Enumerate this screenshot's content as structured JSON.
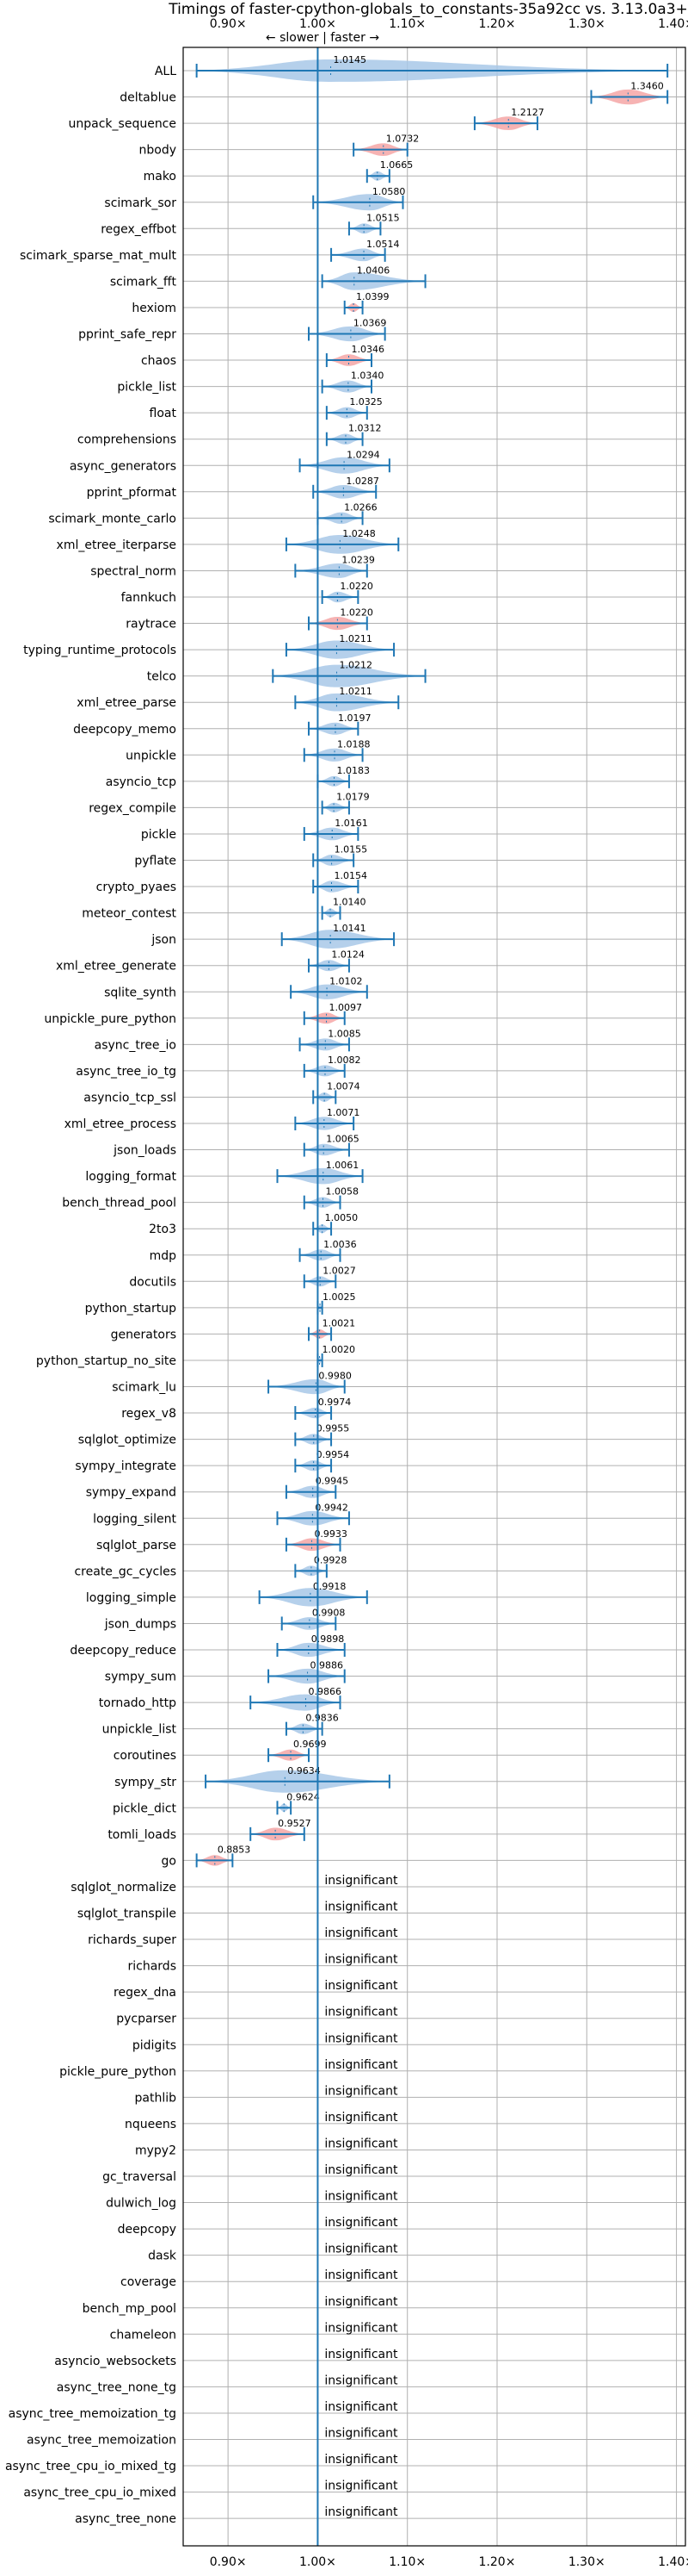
{
  "chart_data": {
    "type": "violin",
    "title": "Timings of faster-cpython-globals_to_constants-35a92cc vs. 3.13.0a3+",
    "direction_label": "← slower | faster →",
    "xlim": [
      0.85,
      1.41
    ],
    "xticks": [
      0.9,
      1.0,
      1.1,
      1.2,
      1.3,
      1.4
    ],
    "xtick_labels": [
      "0.90×",
      "1.00×",
      "1.10×",
      "1.20×",
      "1.30×",
      "1.40×"
    ],
    "reference_line": 1.0,
    "colors": {
      "normal": "#a8c8e8",
      "significant": "#f4a6a6",
      "marker": "#1f77b4"
    },
    "insignificant_label": "insignificant",
    "benchmarks": [
      {
        "name": "ALL",
        "mean": 1.0145,
        "min": 0.865,
        "max": 1.39,
        "flag": "normal",
        "label": "1.0145"
      },
      {
        "name": "deltablue",
        "mean": 1.346,
        "min": 1.305,
        "max": 1.39,
        "flag": "sig",
        "label": "1.3460"
      },
      {
        "name": "unpack_sequence",
        "mean": 1.2127,
        "min": 1.175,
        "max": 1.245,
        "flag": "sig",
        "label": "1.2127"
      },
      {
        "name": "nbody",
        "mean": 1.0732,
        "min": 1.04,
        "max": 1.1,
        "flag": "sig",
        "label": "1.0732"
      },
      {
        "name": "mako",
        "mean": 1.0665,
        "min": 1.055,
        "max": 1.08,
        "flag": "normal",
        "label": "1.0665"
      },
      {
        "name": "scimark_sor",
        "mean": 1.058,
        "min": 0.995,
        "max": 1.095,
        "flag": "normal",
        "label": "1.0580"
      },
      {
        "name": "regex_effbot",
        "mean": 1.0515,
        "min": 1.035,
        "max": 1.07,
        "flag": "normal",
        "label": "1.0515"
      },
      {
        "name": "scimark_sparse_mat_mult",
        "mean": 1.0514,
        "min": 1.015,
        "max": 1.075,
        "flag": "normal",
        "label": "1.0514"
      },
      {
        "name": "scimark_fft",
        "mean": 1.0406,
        "min": 1.005,
        "max": 1.12,
        "flag": "normal",
        "label": "1.0406"
      },
      {
        "name": "hexiom",
        "mean": 1.0399,
        "min": 1.03,
        "max": 1.05,
        "flag": "sig",
        "label": "1.0399"
      },
      {
        "name": "pprint_safe_repr",
        "mean": 1.0369,
        "min": 0.99,
        "max": 1.075,
        "flag": "normal",
        "label": "1.0369"
      },
      {
        "name": "chaos",
        "mean": 1.0346,
        "min": 1.01,
        "max": 1.06,
        "flag": "sig",
        "label": "1.0346"
      },
      {
        "name": "pickle_list",
        "mean": 1.034,
        "min": 1.005,
        "max": 1.06,
        "flag": "normal",
        "label": "1.0340"
      },
      {
        "name": "float",
        "mean": 1.0325,
        "min": 1.01,
        "max": 1.055,
        "flag": "normal",
        "label": "1.0325"
      },
      {
        "name": "comprehensions",
        "mean": 1.0312,
        "min": 1.01,
        "max": 1.05,
        "flag": "normal",
        "label": "1.0312"
      },
      {
        "name": "async_generators",
        "mean": 1.0294,
        "min": 0.98,
        "max": 1.08,
        "flag": "normal",
        "label": "1.0294"
      },
      {
        "name": "pprint_pformat",
        "mean": 1.0287,
        "min": 0.995,
        "max": 1.065,
        "flag": "normal",
        "label": "1.0287"
      },
      {
        "name": "scimark_monte_carlo",
        "mean": 1.0266,
        "min": 1.0,
        "max": 1.05,
        "flag": "normal",
        "label": "1.0266"
      },
      {
        "name": "xml_etree_iterparse",
        "mean": 1.0248,
        "min": 0.965,
        "max": 1.09,
        "flag": "normal",
        "label": "1.0248"
      },
      {
        "name": "spectral_norm",
        "mean": 1.0239,
        "min": 0.975,
        "max": 1.055,
        "flag": "normal",
        "label": "1.0239"
      },
      {
        "name": "fannkuch",
        "mean": 1.022,
        "min": 1.005,
        "max": 1.045,
        "flag": "normal",
        "label": "1.0220"
      },
      {
        "name": "raytrace",
        "mean": 1.022,
        "min": 0.99,
        "max": 1.055,
        "flag": "sig",
        "label": "1.0220"
      },
      {
        "name": "typing_runtime_protocols",
        "mean": 1.0211,
        "min": 0.965,
        "max": 1.085,
        "flag": "normal",
        "label": "1.0211"
      },
      {
        "name": "telco",
        "mean": 1.0212,
        "min": 0.95,
        "max": 1.12,
        "flag": "normal",
        "label": "1.0212"
      },
      {
        "name": "xml_etree_parse",
        "mean": 1.0211,
        "min": 0.975,
        "max": 1.09,
        "flag": "normal",
        "label": "1.0211"
      },
      {
        "name": "deepcopy_memo",
        "mean": 1.0197,
        "min": 0.99,
        "max": 1.045,
        "flag": "normal",
        "label": "1.0197"
      },
      {
        "name": "unpickle",
        "mean": 1.0188,
        "min": 0.985,
        "max": 1.05,
        "flag": "normal",
        "label": "1.0188"
      },
      {
        "name": "asyncio_tcp",
        "mean": 1.0183,
        "min": 1.0,
        "max": 1.035,
        "flag": "normal",
        "label": "1.0183"
      },
      {
        "name": "regex_compile",
        "mean": 1.0179,
        "min": 1.005,
        "max": 1.035,
        "flag": "normal",
        "label": "1.0179"
      },
      {
        "name": "pickle",
        "mean": 1.0161,
        "min": 0.985,
        "max": 1.045,
        "flag": "normal",
        "label": "1.0161"
      },
      {
        "name": "pyflate",
        "mean": 1.0155,
        "min": 0.995,
        "max": 1.04,
        "flag": "normal",
        "label": "1.0155"
      },
      {
        "name": "crypto_pyaes",
        "mean": 1.0154,
        "min": 0.995,
        "max": 1.045,
        "flag": "normal",
        "label": "1.0154"
      },
      {
        "name": "meteor_contest",
        "mean": 1.014,
        "min": 1.005,
        "max": 1.025,
        "flag": "normal",
        "label": "1.0140"
      },
      {
        "name": "json",
        "mean": 1.0141,
        "min": 0.96,
        "max": 1.085,
        "flag": "normal",
        "label": "1.0141"
      },
      {
        "name": "xml_etree_generate",
        "mean": 1.0124,
        "min": 0.99,
        "max": 1.035,
        "flag": "normal",
        "label": "1.0124"
      },
      {
        "name": "sqlite_synth",
        "mean": 1.0102,
        "min": 0.97,
        "max": 1.055,
        "flag": "normal",
        "label": "1.0102"
      },
      {
        "name": "unpickle_pure_python",
        "mean": 1.0097,
        "min": 0.985,
        "max": 1.03,
        "flag": "sig",
        "label": "1.0097"
      },
      {
        "name": "async_tree_io",
        "mean": 1.0085,
        "min": 0.98,
        "max": 1.035,
        "flag": "normal",
        "label": "1.0085"
      },
      {
        "name": "async_tree_io_tg",
        "mean": 1.0082,
        "min": 0.985,
        "max": 1.03,
        "flag": "normal",
        "label": "1.0082"
      },
      {
        "name": "asyncio_tcp_ssl",
        "mean": 1.0074,
        "min": 0.995,
        "max": 1.02,
        "flag": "normal",
        "label": "1.0074"
      },
      {
        "name": "xml_etree_process",
        "mean": 1.0071,
        "min": 0.975,
        "max": 1.04,
        "flag": "normal",
        "label": "1.0071"
      },
      {
        "name": "json_loads",
        "mean": 1.0065,
        "min": 0.985,
        "max": 1.035,
        "flag": "normal",
        "label": "1.0065"
      },
      {
        "name": "logging_format",
        "mean": 1.0061,
        "min": 0.955,
        "max": 1.05,
        "flag": "normal",
        "label": "1.0061"
      },
      {
        "name": "bench_thread_pool",
        "mean": 1.0058,
        "min": 0.985,
        "max": 1.025,
        "flag": "normal",
        "label": "1.0058"
      },
      {
        "name": "2to3",
        "mean": 1.005,
        "min": 0.995,
        "max": 1.015,
        "flag": "normal",
        "label": "1.0050"
      },
      {
        "name": "mdp",
        "mean": 1.0036,
        "min": 0.98,
        "max": 1.025,
        "flag": "normal",
        "label": "1.0036"
      },
      {
        "name": "docutils",
        "mean": 1.0027,
        "min": 0.985,
        "max": 1.02,
        "flag": "normal",
        "label": "1.0027"
      },
      {
        "name": "python_startup",
        "mean": 1.0025,
        "min": 1.0,
        "max": 1.005,
        "flag": "normal",
        "label": "1.0025"
      },
      {
        "name": "generators",
        "mean": 1.0021,
        "min": 0.99,
        "max": 1.015,
        "flag": "sig",
        "label": "1.0021"
      },
      {
        "name": "python_startup_no_site",
        "mean": 1.002,
        "min": 1.0,
        "max": 1.005,
        "flag": "normal",
        "label": "1.0020"
      },
      {
        "name": "scimark_lu",
        "mean": 0.998,
        "min": 0.945,
        "max": 1.03,
        "flag": "normal",
        "label": "0.9980"
      },
      {
        "name": "regex_v8",
        "mean": 0.9974,
        "min": 0.975,
        "max": 1.015,
        "flag": "normal",
        "label": "0.9974"
      },
      {
        "name": "sqlglot_optimize",
        "mean": 0.9955,
        "min": 0.975,
        "max": 1.015,
        "flag": "normal",
        "label": "0.9955"
      },
      {
        "name": "sympy_integrate",
        "mean": 0.9954,
        "min": 0.975,
        "max": 1.015,
        "flag": "normal",
        "label": "0.9954"
      },
      {
        "name": "sympy_expand",
        "mean": 0.9945,
        "min": 0.965,
        "max": 1.02,
        "flag": "normal",
        "label": "0.9945"
      },
      {
        "name": "logging_silent",
        "mean": 0.9942,
        "min": 0.955,
        "max": 1.035,
        "flag": "normal",
        "label": "0.9942"
      },
      {
        "name": "sqlglot_parse",
        "mean": 0.9933,
        "min": 0.965,
        "max": 1.025,
        "flag": "sig",
        "label": "0.9933"
      },
      {
        "name": "create_gc_cycles",
        "mean": 0.9928,
        "min": 0.975,
        "max": 1.01,
        "flag": "normal",
        "label": "0.9928"
      },
      {
        "name": "logging_simple",
        "mean": 0.9918,
        "min": 0.935,
        "max": 1.055,
        "flag": "normal",
        "label": "0.9918"
      },
      {
        "name": "json_dumps",
        "mean": 0.9908,
        "min": 0.96,
        "max": 1.02,
        "flag": "normal",
        "label": "0.9908"
      },
      {
        "name": "deepcopy_reduce",
        "mean": 0.9898,
        "min": 0.955,
        "max": 1.03,
        "flag": "normal",
        "label": "0.9898"
      },
      {
        "name": "sympy_sum",
        "mean": 0.9886,
        "min": 0.945,
        "max": 1.03,
        "flag": "normal",
        "label": "0.9886"
      },
      {
        "name": "tornado_http",
        "mean": 0.9866,
        "min": 0.925,
        "max": 1.025,
        "flag": "normal",
        "label": "0.9866"
      },
      {
        "name": "unpickle_list",
        "mean": 0.9836,
        "min": 0.965,
        "max": 1.005,
        "flag": "normal",
        "label": "0.9836"
      },
      {
        "name": "coroutines",
        "mean": 0.9699,
        "min": 0.945,
        "max": 0.99,
        "flag": "sig",
        "label": "0.9699"
      },
      {
        "name": "sympy_str",
        "mean": 0.9634,
        "min": 0.875,
        "max": 1.08,
        "flag": "normal",
        "label": "0.9634"
      },
      {
        "name": "pickle_dict",
        "mean": 0.9624,
        "min": 0.955,
        "max": 0.97,
        "flag": "normal",
        "label": "0.9624"
      },
      {
        "name": "tomli_loads",
        "mean": 0.9527,
        "min": 0.925,
        "max": 0.985,
        "flag": "sig",
        "label": "0.9527"
      },
      {
        "name": "go",
        "mean": 0.8853,
        "min": 0.865,
        "max": 0.905,
        "flag": "sig",
        "label": "0.8853"
      },
      {
        "name": "sqlglot_normalize",
        "flag": "insig"
      },
      {
        "name": "sqlglot_transpile",
        "flag": "insig"
      },
      {
        "name": "richards_super",
        "flag": "insig"
      },
      {
        "name": "richards",
        "flag": "insig"
      },
      {
        "name": "regex_dna",
        "flag": "insig"
      },
      {
        "name": "pycparser",
        "flag": "insig"
      },
      {
        "name": "pidigits",
        "flag": "insig"
      },
      {
        "name": "pickle_pure_python",
        "flag": "insig"
      },
      {
        "name": "pathlib",
        "flag": "insig"
      },
      {
        "name": "nqueens",
        "flag": "insig"
      },
      {
        "name": "mypy2",
        "flag": "insig"
      },
      {
        "name": "gc_traversal",
        "flag": "insig"
      },
      {
        "name": "dulwich_log",
        "flag": "insig"
      },
      {
        "name": "deepcopy",
        "flag": "insig"
      },
      {
        "name": "dask",
        "flag": "insig"
      },
      {
        "name": "coverage",
        "flag": "insig"
      },
      {
        "name": "bench_mp_pool",
        "flag": "insig"
      },
      {
        "name": "chameleon",
        "flag": "insig"
      },
      {
        "name": "asyncio_websockets",
        "flag": "insig"
      },
      {
        "name": "async_tree_none_tg",
        "flag": "insig"
      },
      {
        "name": "async_tree_memoization_tg",
        "flag": "insig"
      },
      {
        "name": "async_tree_memoization",
        "flag": "insig"
      },
      {
        "name": "async_tree_cpu_io_mixed_tg",
        "flag": "insig"
      },
      {
        "name": "async_tree_cpu_io_mixed",
        "flag": "insig"
      },
      {
        "name": "async_tree_none",
        "flag": "insig"
      }
    ]
  }
}
